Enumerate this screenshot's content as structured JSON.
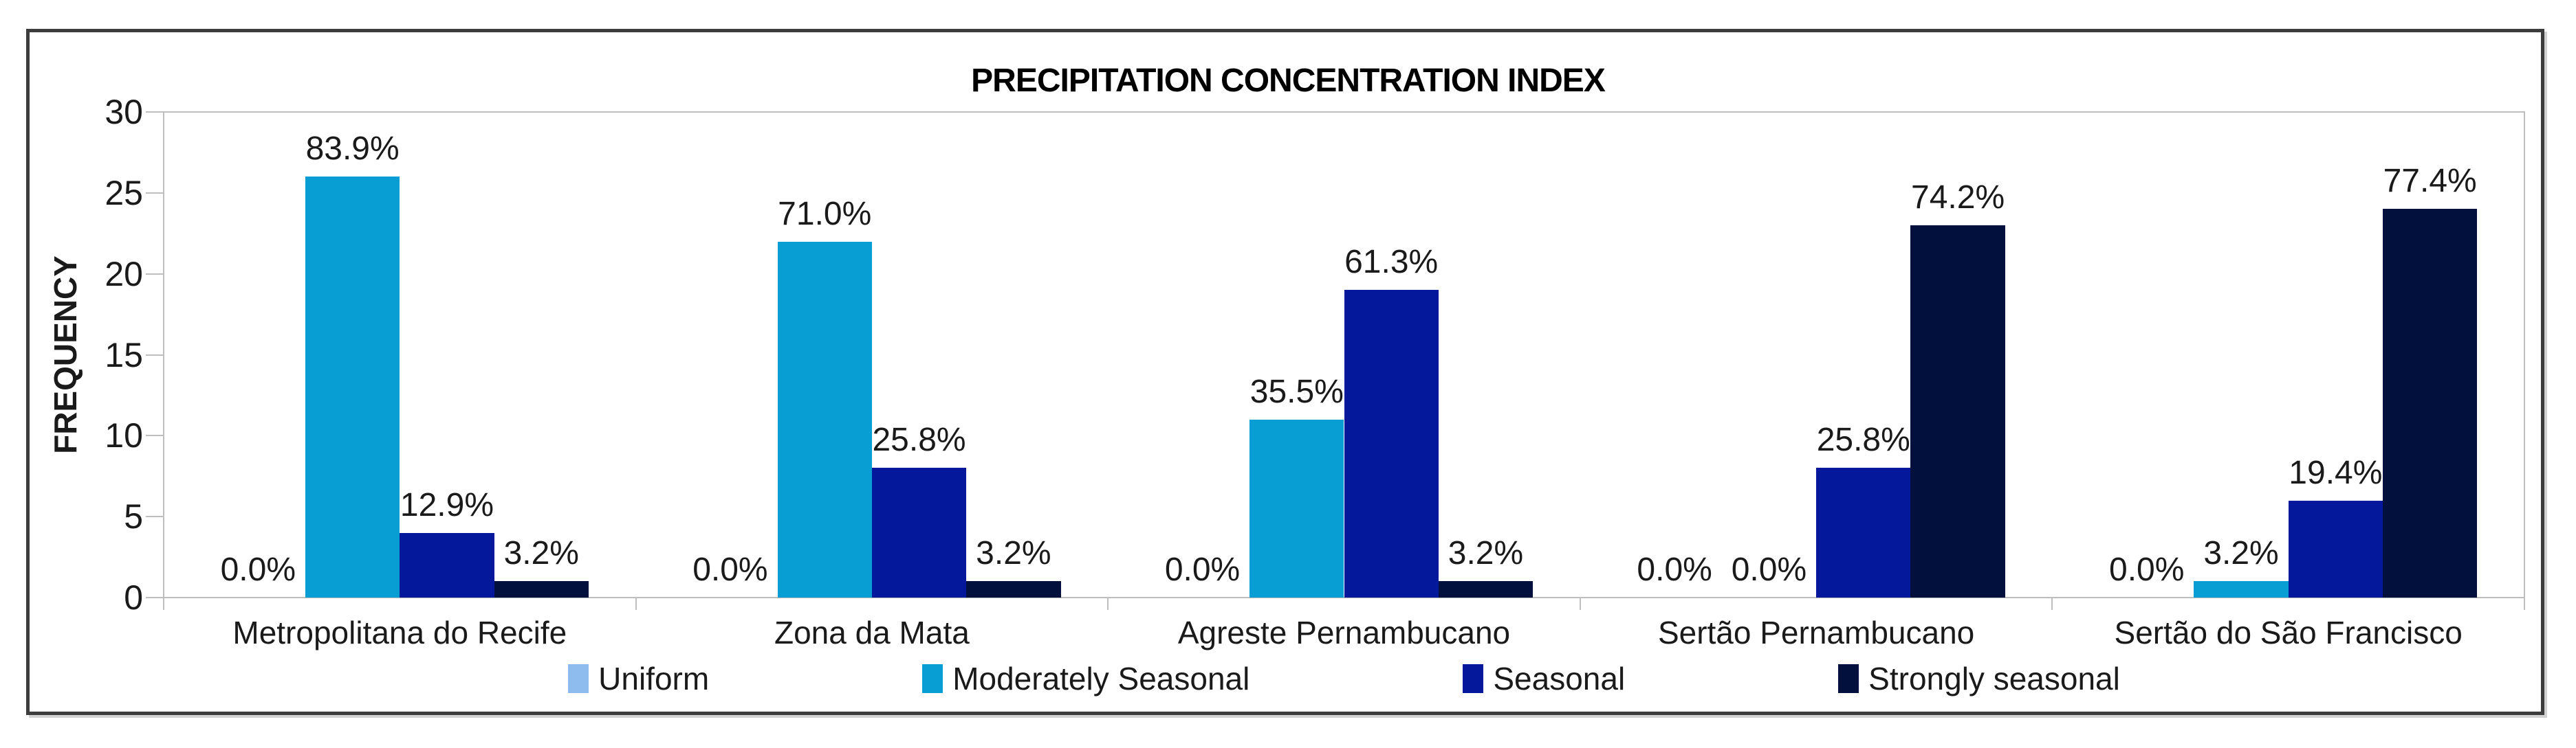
{
  "title": "PRECIPITATION CONCENTRATION INDEX",
  "chart_data": {
    "type": "bar",
    "title": "PRECIPITATION CONCENTRATION INDEX",
    "xlabel": "",
    "ylabel": "FREQUENCY",
    "ylim": [
      0,
      30
    ],
    "yticks": [
      0,
      5,
      10,
      15,
      20,
      25,
      30
    ],
    "grid": false,
    "legend_position": "bottom",
    "categories": [
      "Metropolitana do Recife",
      "Zona da Mata",
      "Agreste Pernambucano",
      "Sertão Pernambucano",
      "Sertão do São Francisco"
    ],
    "series": [
      {
        "name": "Uniform",
        "color": "#8FBCEE",
        "values": [
          0,
          0,
          0,
          0,
          0
        ],
        "labels": [
          "0.0%",
          "0.0%",
          "0.0%",
          "0.0%",
          "0.0%"
        ]
      },
      {
        "name": "Moderately Seasonal",
        "color": "#089ED3",
        "values": [
          26,
          22,
          11,
          0,
          1
        ],
        "labels": [
          "83.9%",
          "71.0%",
          "35.5%",
          "0.0%",
          "3.2%"
        ]
      },
      {
        "name": "Seasonal",
        "color": "#04189C",
        "values": [
          4,
          8,
          19,
          8,
          6
        ],
        "labels": [
          "12.9%",
          "25.8%",
          "61.3%",
          "25.8%",
          "19.4%"
        ]
      },
      {
        "name": "Strongly seasonal",
        "color": "#02103E",
        "values": [
          1,
          1,
          1,
          23,
          24
        ],
        "labels": [
          "3.2%",
          "3.2%",
          "3.2%",
          "74.2%",
          "77.4%"
        ]
      }
    ],
    "axis_color": "#BEBEBE",
    "frame_color": "#3C3C3C",
    "text_color": "#1A1A1A"
  }
}
